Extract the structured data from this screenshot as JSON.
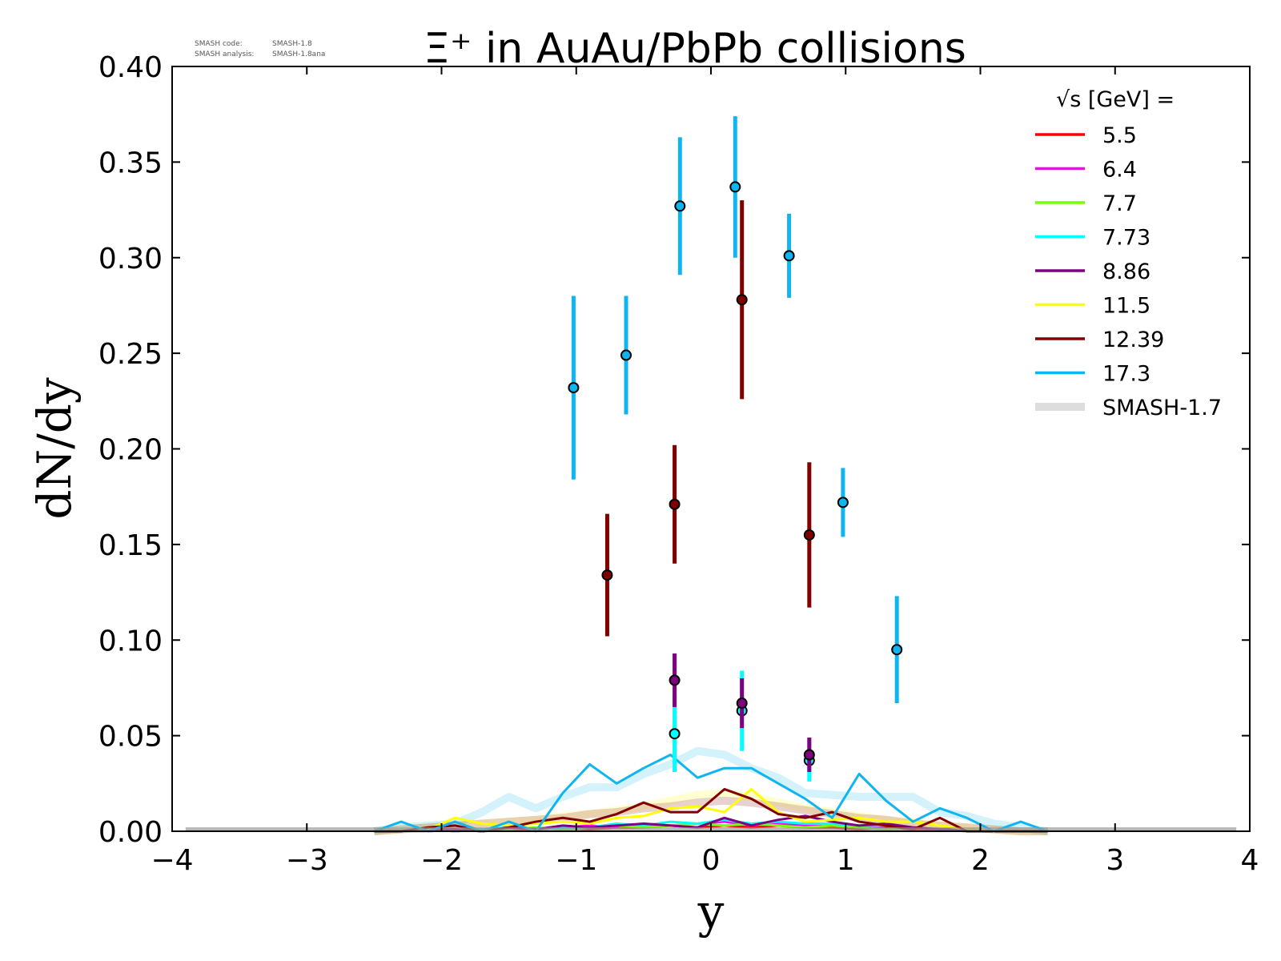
{
  "chart_data": {
    "type": "scatter",
    "title": "Ξ⁺ in AuAu/PbPb collisions",
    "xlabel": "y",
    "ylabel": "dN/dy",
    "xlim": [
      -4,
      4
    ],
    "ylim": [
      0,
      0.4
    ],
    "x_ticks": [
      -4,
      -3,
      -2,
      -1,
      0,
      1,
      2,
      3,
      4
    ],
    "x_tick_labels": [
      "−4",
      "−3",
      "−2",
      "−1",
      "0",
      "1",
      "2",
      "3",
      "4"
    ],
    "y_ticks": [
      0,
      0.05,
      0.1,
      0.15,
      0.2,
      0.25,
      0.3,
      0.35,
      0.4
    ],
    "y_tick_labels": [
      "0.00",
      "0.05",
      "0.10",
      "0.15",
      "0.20",
      "0.25",
      "0.30",
      "0.35",
      "0.40"
    ],
    "grid": false,
    "legend_title": "√s  [GeV] =",
    "legend_placement": "top-right",
    "stamp": {
      "code_label": "SMASH code:",
      "code_value": "SMASH-1.8",
      "analysis_label": "SMASH analysis:",
      "analysis_value": "SMASH-1.8ana"
    },
    "series": [
      {
        "name": "5.5",
        "color": "#ff0000",
        "x": [
          -2.5,
          -2.3,
          -2.1,
          -1.9,
          -1.7,
          -1.5,
          -1.3,
          -1.1,
          -0.9,
          -0.7,
          -0.5,
          -0.3,
          -0.1,
          0.1,
          0.3,
          0.5,
          0.7,
          0.9,
          1.1,
          1.3,
          1.5,
          1.7,
          1.9,
          2.1,
          2.3,
          2.5
        ],
        "y": [
          0,
          0,
          0,
          0.001,
          0,
          0.001,
          0.001,
          0.002,
          0.001,
          0.002,
          0.002,
          0.003,
          0.002,
          0.003,
          0.002,
          0.003,
          0.002,
          0.002,
          0.001,
          0.002,
          0.001,
          0.001,
          0,
          0,
          0,
          0
        ]
      },
      {
        "name": "6.4",
        "color": "#ff00ff",
        "x": [
          -2.5,
          -2.3,
          -2.1,
          -1.9,
          -1.7,
          -1.5,
          -1.3,
          -1.1,
          -0.9,
          -0.7,
          -0.5,
          -0.3,
          -0.1,
          0.1,
          0.3,
          0.5,
          0.7,
          0.9,
          1.1,
          1.3,
          1.5,
          1.7,
          1.9,
          2.1,
          2.3,
          2.5
        ],
        "y": [
          0,
          0,
          0.001,
          0,
          0.001,
          0.002,
          0.001,
          0.002,
          0.003,
          0.002,
          0.004,
          0.003,
          0.004,
          0.005,
          0.003,
          0.004,
          0.003,
          0.004,
          0.002,
          0.003,
          0.002,
          0.001,
          0.001,
          0,
          0,
          0
        ]
      },
      {
        "name": "7.7",
        "color": "#77ff00",
        "x": [
          -2.5,
          -2.3,
          -2.1,
          -1.9,
          -1.7,
          -1.5,
          -1.3,
          -1.1,
          -0.9,
          -0.7,
          -0.5,
          -0.3,
          -0.1,
          0.1,
          0.3,
          0.5,
          0.7,
          0.9,
          1.1,
          1.3,
          1.5,
          1.7,
          1.9,
          2.1,
          2.3,
          2.5
        ],
        "y": [
          0,
          0,
          0,
          0.001,
          0,
          0.001,
          0.002,
          0.001,
          0.002,
          0.003,
          0.002,
          0.003,
          0.004,
          0.003,
          0.004,
          0.003,
          0.002,
          0.003,
          0.002,
          0.001,
          0.002,
          0.001,
          0,
          0,
          0,
          0
        ],
        "points": {
          "x": [],
          "y": [],
          "err": []
        }
      },
      {
        "name": "7.73",
        "color": "#00ffff",
        "x": [
          -2.5,
          -2.3,
          -2.1,
          -1.9,
          -1.7,
          -1.5,
          -1.3,
          -1.1,
          -0.9,
          -0.7,
          -0.5,
          -0.3,
          -0.1,
          0.1,
          0.3,
          0.5,
          0.7,
          0.9,
          1.1,
          1.3,
          1.5,
          1.7,
          1.9,
          2.1,
          2.3,
          2.5
        ],
        "y": [
          0,
          0,
          0.001,
          0,
          0.001,
          0.002,
          0.001,
          0.002,
          0.002,
          0.004,
          0.003,
          0.005,
          0.004,
          0.006,
          0.004,
          0.005,
          0.004,
          0.004,
          0.003,
          0.003,
          0.002,
          0.001,
          0.001,
          0,
          0,
          0
        ],
        "points": {
          "x": [
            -0.27,
            0.23,
            0.73
          ],
          "y": [
            0.051,
            0.063,
            0.037
          ],
          "err": [
            0.02,
            0.021,
            0.011
          ]
        }
      },
      {
        "name": "8.86",
        "color": "#800080",
        "x": [
          -2.5,
          -2.3,
          -2.1,
          -1.9,
          -1.7,
          -1.5,
          -1.3,
          -1.1,
          -0.9,
          -0.7,
          -0.5,
          -0.3,
          -0.1,
          0.1,
          0.3,
          0.5,
          0.7,
          0.9,
          1.1,
          1.3,
          1.5,
          1.7,
          1.9,
          2.1,
          2.3,
          2.5
        ],
        "y": [
          0,
          0,
          0.001,
          0.001,
          0,
          0.002,
          0.001,
          0.003,
          0.002,
          0.003,
          0.004,
          0.003,
          0.002,
          0.007,
          0.003,
          0.006,
          0.008,
          0.005,
          0.003,
          0.004,
          0.002,
          0.001,
          0.001,
          0,
          0,
          0
        ],
        "points": {
          "x": [
            -0.27,
            0.23,
            0.73
          ],
          "y": [
            0.079,
            0.067,
            0.04
          ],
          "err": [
            0.014,
            0.013,
            0.009
          ]
        }
      },
      {
        "name": "11.5",
        "color": "#ffff00",
        "x": [
          -2.5,
          -2.3,
          -2.1,
          -1.9,
          -1.7,
          -1.5,
          -1.3,
          -1.1,
          -0.9,
          -0.7,
          -0.5,
          -0.3,
          -0.1,
          0.1,
          0.3,
          0.5,
          0.7,
          0.9,
          1.1,
          1.3,
          1.5,
          1.7,
          1.9,
          2.1,
          2.3,
          2.5
        ],
        "y": [
          0,
          0,
          0.001,
          0.007,
          0.004,
          0.003,
          0.004,
          0.005,
          0.004,
          0.007,
          0.008,
          0.012,
          0.013,
          0.01,
          0.022,
          0.01,
          0.005,
          0.006,
          0.007,
          0.005,
          0.005,
          0.003,
          0.001,
          0,
          0,
          0
        ]
      },
      {
        "name": "12.39",
        "color": "#800000",
        "x": [
          -2.5,
          -2.3,
          -2.1,
          -1.9,
          -1.7,
          -1.5,
          -1.3,
          -1.1,
          -0.9,
          -0.7,
          -0.5,
          -0.3,
          -0.1,
          0.1,
          0.3,
          0.5,
          0.7,
          0.9,
          1.1,
          1.3,
          1.5,
          1.7,
          1.9,
          2.1,
          2.3,
          2.5
        ],
        "y": [
          0,
          0,
          0.002,
          0.003,
          0,
          0.002,
          0.005,
          0.007,
          0.005,
          0.009,
          0.015,
          0.01,
          0.01,
          0.022,
          0.017,
          0.009,
          0.007,
          0.01,
          0.005,
          0.003,
          0.001,
          0.007,
          0,
          0,
          0,
          0
        ],
        "points": {
          "x": [
            -0.77,
            -0.27,
            0.23,
            0.73
          ],
          "y": [
            0.134,
            0.171,
            0.278,
            0.155
          ],
          "err": [
            0.032,
            0.031,
            0.052,
            0.038
          ]
        }
      },
      {
        "name": "17.3",
        "color": "#0fb5f0",
        "x": [
          -2.5,
          -2.3,
          -2.1,
          -1.9,
          -1.7,
          -1.5,
          -1.3,
          -1.1,
          -0.9,
          -0.7,
          -0.5,
          -0.3,
          -0.1,
          0.1,
          0.3,
          0.5,
          0.7,
          0.9,
          1.1,
          1.3,
          1.5,
          1.7,
          1.9,
          2.1,
          2.3,
          2.5
        ],
        "y": [
          0,
          0.005,
          0,
          0.005,
          0,
          0.005,
          0,
          0.02,
          0.035,
          0.025,
          0.033,
          0.04,
          0.028,
          0.033,
          0.033,
          0.025,
          0.017,
          0.007,
          0.03,
          0.016,
          0.005,
          0.012,
          0.007,
          0,
          0.005,
          0
        ],
        "points": {
          "x": [
            -1.02,
            -0.63,
            -0.23,
            0.18,
            0.58,
            0.98,
            1.38
          ],
          "y": [
            0.232,
            0.249,
            0.327,
            0.337,
            0.301,
            0.172,
            0.095
          ],
          "err": [
            0.048,
            0.031,
            0.036,
            0.037,
            0.022,
            0.018,
            0.028
          ]
        }
      },
      {
        "name": "SMASH-1.7",
        "color": "#dddddd",
        "x": [
          -3.9,
          3.9
        ],
        "y": [
          0.001,
          0.001
        ]
      }
    ],
    "reference_bands": [
      {
        "series": "17.3",
        "x": [
          -2.5,
          -2.3,
          -2.1,
          -1.9,
          -1.7,
          -1.5,
          -1.3,
          -1.1,
          -0.9,
          -0.7,
          -0.5,
          -0.3,
          -0.1,
          0.1,
          0.3,
          0.5,
          0.7,
          0.9,
          1.1,
          1.3,
          1.5,
          1.7,
          1.9,
          2.1,
          2.3,
          2.5
        ],
        "y": [
          0,
          0.002,
          0.003,
          0.004,
          0.01,
          0.018,
          0.012,
          0.018,
          0.023,
          0.023,
          0.03,
          0.035,
          0.042,
          0.04,
          0.033,
          0.028,
          0.02,
          0.019,
          0.018,
          0.018,
          0.018,
          0.01,
          0.008,
          0.004,
          0.002,
          0
        ]
      },
      {
        "series": "11.5",
        "x": [
          -2.5,
          -2.3,
          -2.1,
          -1.9,
          -1.7,
          -1.5,
          -1.3,
          -1.1,
          -0.9,
          -0.7,
          -0.5,
          -0.3,
          -0.1,
          0.1,
          0.3,
          0.5,
          0.7,
          0.9,
          1.1,
          1.3,
          1.5,
          1.7,
          1.9,
          2.1,
          2.3,
          2.5
        ],
        "y": [
          0,
          0.001,
          0.002,
          0.003,
          0.004,
          0.005,
          0.006,
          0.008,
          0.009,
          0.011,
          0.013,
          0.016,
          0.019,
          0.02,
          0.018,
          0.015,
          0.012,
          0.01,
          0.008,
          0.006,
          0.005,
          0.003,
          0.002,
          0.001,
          0,
          0
        ]
      },
      {
        "series": "12.39",
        "x": [
          -2.5,
          -2.3,
          -2.1,
          -1.9,
          -1.7,
          -1.5,
          -1.3,
          -1.1,
          -0.9,
          -0.7,
          -0.5,
          -0.3,
          -0.1,
          0.1,
          0.3,
          0.5,
          0.7,
          0.9,
          1.1,
          1.3,
          1.5,
          1.7,
          1.9,
          2.1,
          2.3,
          2.5
        ],
        "y": [
          0,
          0.001,
          0.002,
          0.003,
          0.004,
          0.005,
          0.006,
          0.007,
          0.009,
          0.01,
          0.012,
          0.013,
          0.015,
          0.016,
          0.015,
          0.013,
          0.011,
          0.009,
          0.007,
          0.006,
          0.004,
          0.003,
          0.002,
          0.001,
          0,
          0
        ]
      }
    ]
  }
}
